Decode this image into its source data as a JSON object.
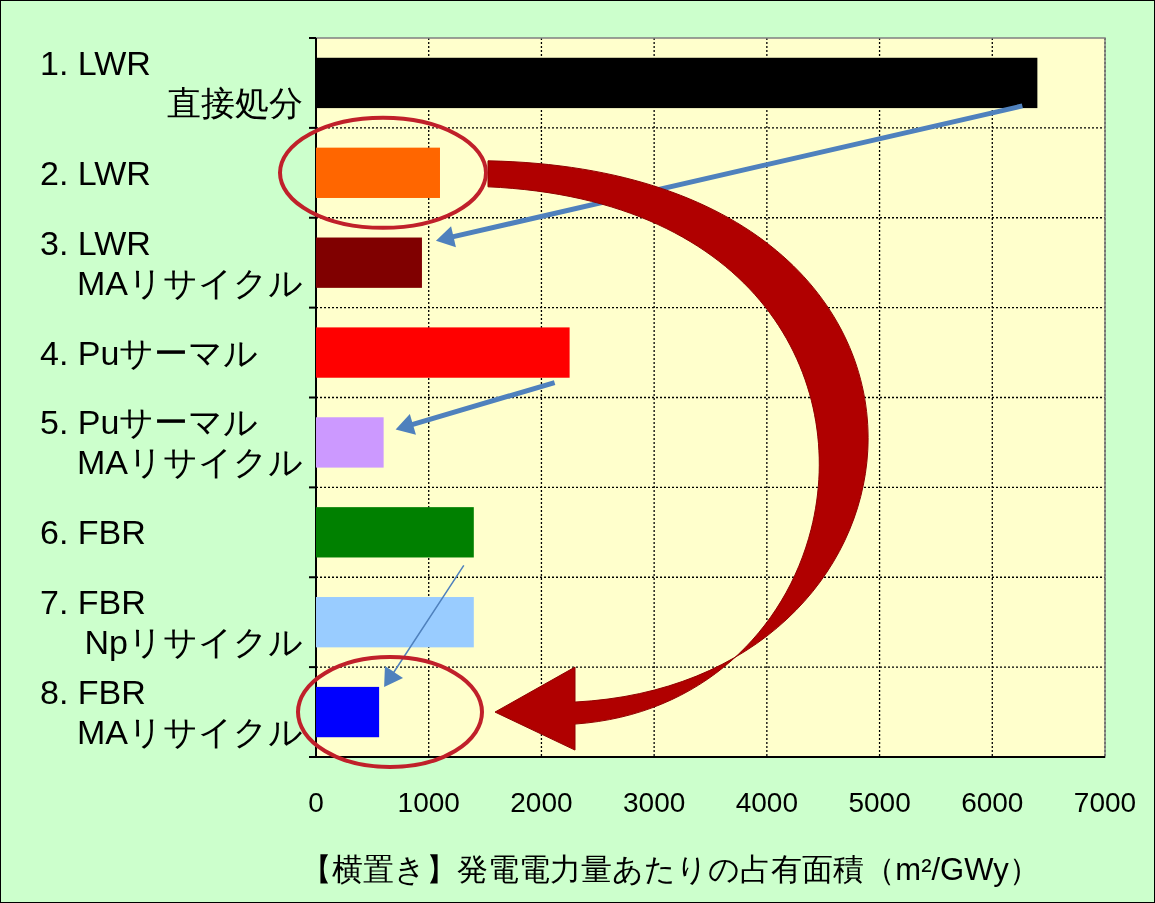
{
  "chart_data": {
    "type": "bar",
    "orientation": "horizontal",
    "xlabel": "【横置き】発電電力量あたりの占有面積（m²/GWy）",
    "categories": [
      "1. LWR\n直接処分",
      "2. LWR",
      "3. LWR\nMAリサイクル",
      "4. Puサーマル",
      "5. Puサーマル\nMAリサイクル",
      "6. FBR",
      "7. FBR\nNpリサイクル",
      "8. FBR\nMAリサイクル"
    ],
    "values": [
      6400,
      1100,
      940,
      2250,
      600,
      1400,
      1400,
      560
    ],
    "colors": [
      "#000000",
      "#ff6600",
      "#800000",
      "#ff0000",
      "#cc99ff",
      "#008000",
      "#99ccff",
      "#0000ff"
    ],
    "xlim": [
      0,
      7000
    ],
    "xticks": [
      0,
      1000,
      2000,
      3000,
      4000,
      5000,
      6000,
      7000
    ],
    "grid": true
  }
}
